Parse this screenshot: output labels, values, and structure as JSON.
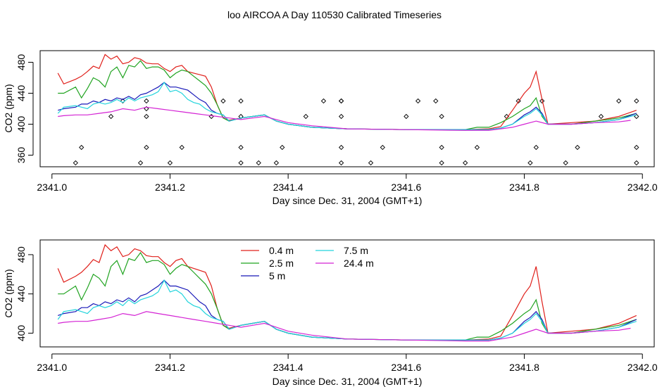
{
  "title": "loo AIRCOA A  Day 110530  Calibrated Timeseries",
  "chart_data": [
    {
      "type": "line",
      "xlabel": "Day since Dec. 31, 2004 (GMT+1)",
      "ylabel": "CO2 (ppm)",
      "xlim": [
        2340.98,
        2342.02
      ],
      "ylim": [
        345,
        495
      ],
      "xticks": [
        2341.0,
        2341.2,
        2341.4,
        2341.6,
        2341.8,
        2342.0
      ],
      "xtick_labels": [
        "2341.0",
        "2341.2",
        "2341.4",
        "2341.6",
        "2341.8",
        "2342.0"
      ],
      "yticks": [
        360,
        400,
        440,
        480
      ],
      "ytick_labels": [
        "360",
        "400",
        "440",
        "480"
      ],
      "series": [
        {
          "name": "0.4 m",
          "color": "#e0201b",
          "x": [
            2341.01,
            2341.02,
            2341.04,
            2341.05,
            2341.06,
            2341.07,
            2341.08,
            2341.09,
            2341.1,
            2341.11,
            2341.12,
            2341.13,
            2341.14,
            2341.15,
            2341.16,
            2341.17,
            2341.18,
            2341.19,
            2341.2,
            2341.21,
            2341.22,
            2341.23,
            2341.24,
            2341.25,
            2341.26,
            2341.27,
            2341.28,
            2341.29,
            2341.3,
            2341.32,
            2341.34,
            2341.36,
            2341.38,
            2341.4,
            2341.44,
            2341.5,
            2341.6,
            2341.7,
            2341.74,
            2341.76,
            2341.78,
            2341.8,
            2341.81,
            2341.82,
            2341.83,
            2341.84,
            2341.88,
            2341.92,
            2341.96,
            2341.99
          ],
          "y": [
            466,
            452,
            458,
            462,
            468,
            475,
            472,
            490,
            484,
            488,
            478,
            480,
            486,
            484,
            479,
            478,
            478,
            472,
            468,
            474,
            476,
            468,
            466,
            464,
            462,
            448,
            425,
            408,
            405,
            408,
            410,
            412,
            404,
            400,
            396,
            394,
            393,
            393,
            394,
            397,
            418,
            440,
            448,
            468,
            432,
            400,
            402,
            404,
            410,
            418
          ]
        },
        {
          "name": "2.5 m",
          "color": "#1fa31f",
          "x": [
            2341.01,
            2341.02,
            2341.04,
            2341.05,
            2341.06,
            2341.07,
            2341.08,
            2341.09,
            2341.1,
            2341.11,
            2341.12,
            2341.13,
            2341.14,
            2341.15,
            2341.16,
            2341.17,
            2341.18,
            2341.19,
            2341.2,
            2341.21,
            2341.22,
            2341.23,
            2341.24,
            2341.25,
            2341.26,
            2341.27,
            2341.28,
            2341.29,
            2341.3,
            2341.32,
            2341.34,
            2341.36,
            2341.38,
            2341.4,
            2341.44,
            2341.5,
            2341.6,
            2341.7,
            2341.72,
            2341.74,
            2341.76,
            2341.78,
            2341.8,
            2341.81,
            2341.82,
            2341.83,
            2341.84,
            2341.88,
            2341.92,
            2341.96,
            2341.99
          ],
          "y": [
            440,
            440,
            448,
            434,
            446,
            460,
            456,
            448,
            468,
            474,
            460,
            476,
            474,
            482,
            472,
            474,
            474,
            470,
            460,
            466,
            470,
            468,
            462,
            456,
            450,
            440,
            425,
            408,
            404,
            408,
            410,
            412,
            404,
            400,
            396,
            394,
            393,
            393,
            396,
            396,
            402,
            410,
            420,
            424,
            434,
            410,
            400,
            400,
            404,
            408,
            414
          ]
        },
        {
          "name": "5 m",
          "color": "#1818b8",
          "x": [
            2341.01,
            2341.02,
            2341.04,
            2341.05,
            2341.06,
            2341.07,
            2341.08,
            2341.09,
            2341.1,
            2341.11,
            2341.12,
            2341.13,
            2341.14,
            2341.15,
            2341.16,
            2341.17,
            2341.18,
            2341.19,
            2341.2,
            2341.21,
            2341.22,
            2341.23,
            2341.24,
            2341.25,
            2341.26,
            2341.27,
            2341.28,
            2341.29,
            2341.3,
            2341.32,
            2341.34,
            2341.36,
            2341.38,
            2341.4,
            2341.44,
            2341.5,
            2341.6,
            2341.7,
            2341.74,
            2341.76,
            2341.78,
            2341.8,
            2341.81,
            2341.82,
            2341.83,
            2341.84,
            2341.88,
            2341.92,
            2341.96,
            2341.99
          ],
          "y": [
            418,
            420,
            422,
            426,
            426,
            430,
            428,
            432,
            430,
            434,
            432,
            436,
            432,
            438,
            440,
            444,
            448,
            454,
            448,
            448,
            446,
            444,
            438,
            432,
            428,
            418,
            414,
            412,
            404,
            408,
            410,
            412,
            404,
            400,
            396,
            394,
            393,
            393,
            393,
            395,
            400,
            412,
            416,
            422,
            414,
            400,
            400,
            402,
            406,
            414
          ]
        },
        {
          "name": "7.5 m",
          "color": "#22d4dc",
          "x": [
            2341.01,
            2341.02,
            2341.04,
            2341.05,
            2341.06,
            2341.07,
            2341.08,
            2341.09,
            2341.1,
            2341.11,
            2341.12,
            2341.13,
            2341.14,
            2341.15,
            2341.16,
            2341.17,
            2341.18,
            2341.19,
            2341.2,
            2341.21,
            2341.22,
            2341.23,
            2341.24,
            2341.25,
            2341.26,
            2341.27,
            2341.28,
            2341.29,
            2341.3,
            2341.32,
            2341.34,
            2341.36,
            2341.38,
            2341.4,
            2341.44,
            2341.5,
            2341.6,
            2341.7,
            2341.74,
            2341.76,
            2341.78,
            2341.8,
            2341.81,
            2341.82,
            2341.83,
            2341.84,
            2341.88,
            2341.92,
            2341.96,
            2341.99
          ],
          "y": [
            414,
            422,
            424,
            422,
            420,
            426,
            428,
            426,
            428,
            432,
            428,
            434,
            430,
            434,
            436,
            438,
            442,
            454,
            442,
            444,
            440,
            432,
            428,
            426,
            420,
            416,
            414,
            412,
            404,
            408,
            410,
            412,
            404,
            400,
            396,
            394,
            393,
            393,
            393,
            395,
            400,
            410,
            414,
            420,
            412,
            400,
            400,
            402,
            406,
            412
          ]
        },
        {
          "name": "24.4 m",
          "color": "#d423d4",
          "x": [
            2341.01,
            2341.02,
            2341.04,
            2341.06,
            2341.08,
            2341.1,
            2341.12,
            2341.14,
            2341.16,
            2341.18,
            2341.2,
            2341.22,
            2341.24,
            2341.26,
            2341.28,
            2341.3,
            2341.32,
            2341.34,
            2341.36,
            2341.38,
            2341.4,
            2341.44,
            2341.5,
            2341.6,
            2341.7,
            2341.74,
            2341.76,
            2341.78,
            2341.8,
            2341.82,
            2341.84,
            2341.88,
            2341.92,
            2341.96,
            2341.98
          ],
          "y": [
            410,
            411,
            412,
            412,
            414,
            416,
            420,
            418,
            422,
            420,
            418,
            416,
            414,
            412,
            410,
            408,
            406,
            408,
            410,
            406,
            402,
            398,
            394,
            393,
            392,
            392,
            394,
            396,
            400,
            404,
            400,
            400,
            402,
            403,
            405
          ]
        }
      ],
      "points": {
        "color": "#000000",
        "x": [
          2341.04,
          2341.05,
          2341.1,
          2341.12,
          2341.15,
          2341.16,
          2341.16,
          2341.16,
          2341.16,
          2341.2,
          2341.22,
          2341.27,
          2341.29,
          2341.32,
          2341.32,
          2341.32,
          2341.32,
          2341.35,
          2341.38,
          2341.39,
          2341.43,
          2341.46,
          2341.49,
          2341.49,
          2341.49,
          2341.49,
          2341.49,
          2341.54,
          2341.56,
          2341.6,
          2341.62,
          2341.65,
          2341.66,
          2341.66,
          2341.66,
          2341.7,
          2341.72,
          2341.77,
          2341.79,
          2341.81,
          2341.82,
          2341.83,
          2341.87,
          2341.89,
          2341.93,
          2341.96,
          2341.99,
          2341.99,
          2341.99,
          2341.99
        ],
        "y": [
          350,
          370,
          410,
          430,
          350,
          370,
          410,
          420,
          430,
          350,
          370,
          410,
          430,
          370,
          350,
          410,
          430,
          350,
          350,
          370,
          410,
          430,
          350,
          370,
          410,
          430,
          430,
          350,
          370,
          410,
          430,
          430,
          370,
          350,
          410,
          350,
          370,
          410,
          430,
          350,
          370,
          430,
          350,
          370,
          410,
          430,
          350,
          370,
          410,
          430
        ]
      },
      "legend": "none",
      "grid": false
    },
    {
      "type": "line",
      "xlabel": "Day since Dec. 31, 2004 (GMT+1)",
      "ylabel": "CO2 (ppm)",
      "xlim": [
        2340.98,
        2342.02
      ],
      "ylim": [
        386,
        495
      ],
      "xticks": [
        2341.0,
        2341.2,
        2341.4,
        2341.6,
        2341.8,
        2342.0
      ],
      "xtick_labels": [
        "2341.0",
        "2341.2",
        "2341.4",
        "2341.6",
        "2341.8",
        "2342.0"
      ],
      "yticks": [
        400,
        440,
        480
      ],
      "ytick_labels": [
        "400",
        "440",
        "480"
      ],
      "legend": "top-center",
      "grid": false,
      "series_ref": "same series as chart 1"
    }
  ]
}
